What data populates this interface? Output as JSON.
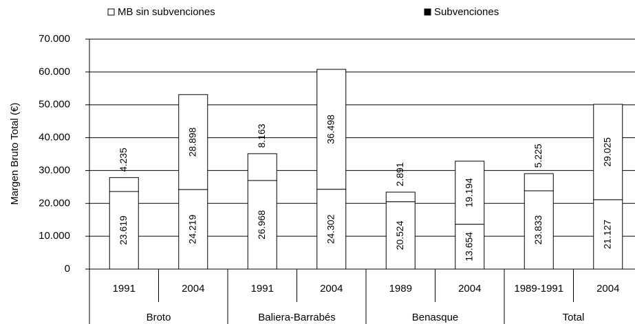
{
  "chart_data": {
    "type": "stacked_bar",
    "y_axis_label": "Margen Bruto Total (€)",
    "groups": [
      {
        "name": "Broto",
        "categories": [
          "1991",
          "2004"
        ]
      },
      {
        "name": "Baliera-Barrabés",
        "categories": [
          "1991",
          "2004"
        ]
      },
      {
        "name": "Benasque",
        "categories": [
          "1989",
          "2004"
        ]
      },
      {
        "name": "Total",
        "categories": [
          "1989-1991",
          "2004"
        ]
      }
    ],
    "bar_fill": "#ffffff",
    "series": [
      {
        "name": "MB sin subvenciones",
        "color": "#ffffff",
        "values": [
          23619,
          24219,
          26968,
          24302,
          20524,
          13654,
          23833,
          21127
        ],
        "value_labels": [
          "23.619",
          "24.219",
          "26.968",
          "24.302",
          "20.524",
          "13.654",
          "23.833",
          "21.127"
        ]
      },
      {
        "name": "Subvenciones",
        "color": "#000000",
        "values": [
          4235,
          28898,
          8163,
          36498,
          2891,
          19194,
          5225,
          29025
        ],
        "value_labels": [
          "4.235",
          "28.898",
          "8.163",
          "36.498",
          "2.891",
          "19.194",
          "5.225",
          "29.025"
        ]
      }
    ],
    "ylim": [
      0,
      70000
    ],
    "yticks": [
      0,
      {
        "value": 10000,
        "label": "10.000"
      },
      {
        "value": 20000,
        "label": "20.000"
      },
      {
        "value": 30000,
        "label": "30.000"
      },
      {
        "value": 40000,
        "label": "40.000"
      },
      {
        "value": 50000,
        "label": "50.000"
      },
      {
        "value": 60000,
        "label": "60.000"
      },
      {
        "value": 70000,
        "label": "70.000"
      }
    ],
    "grid": true
  }
}
